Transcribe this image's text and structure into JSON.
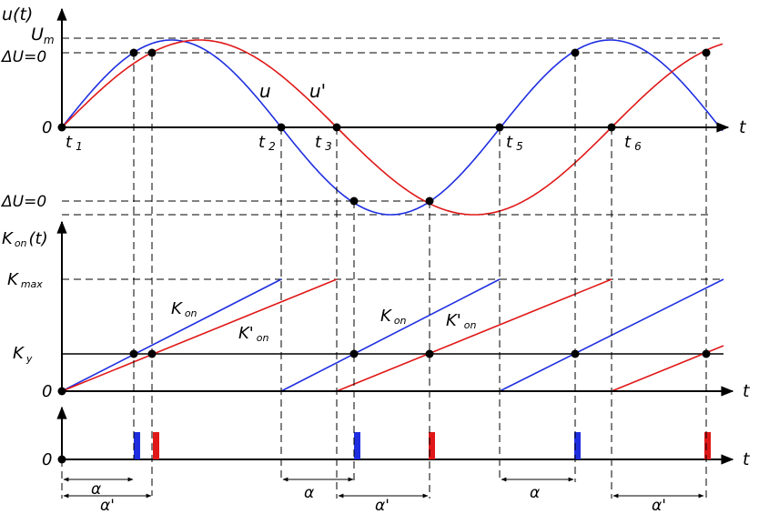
{
  "diagram": {
    "top": {
      "ylabel": "u(t)",
      "xlabel": "t",
      "y_levels": {
        "um": "U",
        "um_sub": "m",
        "du0": "ΔU=0",
        "zero": "0",
        "du0_neg": "ΔU=0"
      },
      "time_marks": [
        {
          "base": "t",
          "sub": "1"
        },
        {
          "base": "t",
          "sub": "2"
        },
        {
          "base": "t",
          "sub": "3"
        },
        {
          "base": "t",
          "sub": "5"
        },
        {
          "base": "t",
          "sub": "6"
        }
      ],
      "curve_labels": {
        "u": "u",
        "u_prime": "u'"
      },
      "colors": {
        "u": "#1f2fe0",
        "u_prime": "#e01818"
      }
    },
    "middle": {
      "ylabel_base": "K",
      "ylabel_sub": "on",
      "ylabel_tail": "(t)",
      "xlabel": "t",
      "y_levels": {
        "kmax_base": "K",
        "kmax_sub": "max",
        "ky_base": "K",
        "ky_sub": "y",
        "zero": "0"
      },
      "ramp_labels": {
        "kon_base": "K",
        "kon_sub": "on",
        "kon_prime_base": "K'",
        "kon_prime_sub": "on"
      }
    },
    "bottom": {
      "zero": "0",
      "xlabel": "t",
      "alpha": "α",
      "alpha_prime": "α'"
    }
  }
}
